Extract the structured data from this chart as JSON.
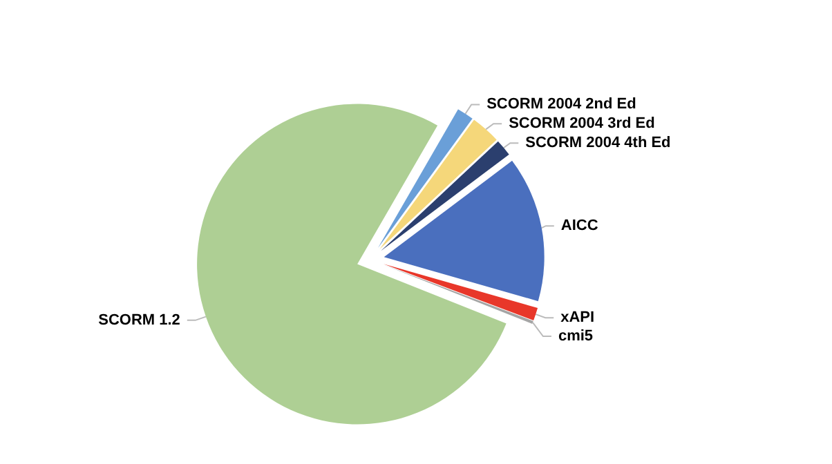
{
  "chart_data": {
    "type": "pie",
    "categories": [
      "SCORM 2004 2nd Ed",
      "SCORM 2004 3rd Ed",
      "SCORM 2004 4th Ed",
      "AICC",
      "xAPI",
      "cmi5",
      "SCORM 1.2"
    ],
    "values": [
      1.7,
      3,
      1.7,
      14.7,
      1.3,
      0.3,
      77.3
    ],
    "colors": [
      "#6a9fd8",
      "#f5d77a",
      "#2b3f6e",
      "#4a6fbe",
      "#e8372a",
      "#a5a5a5",
      "#aecf94"
    ],
    "legend": false
  }
}
